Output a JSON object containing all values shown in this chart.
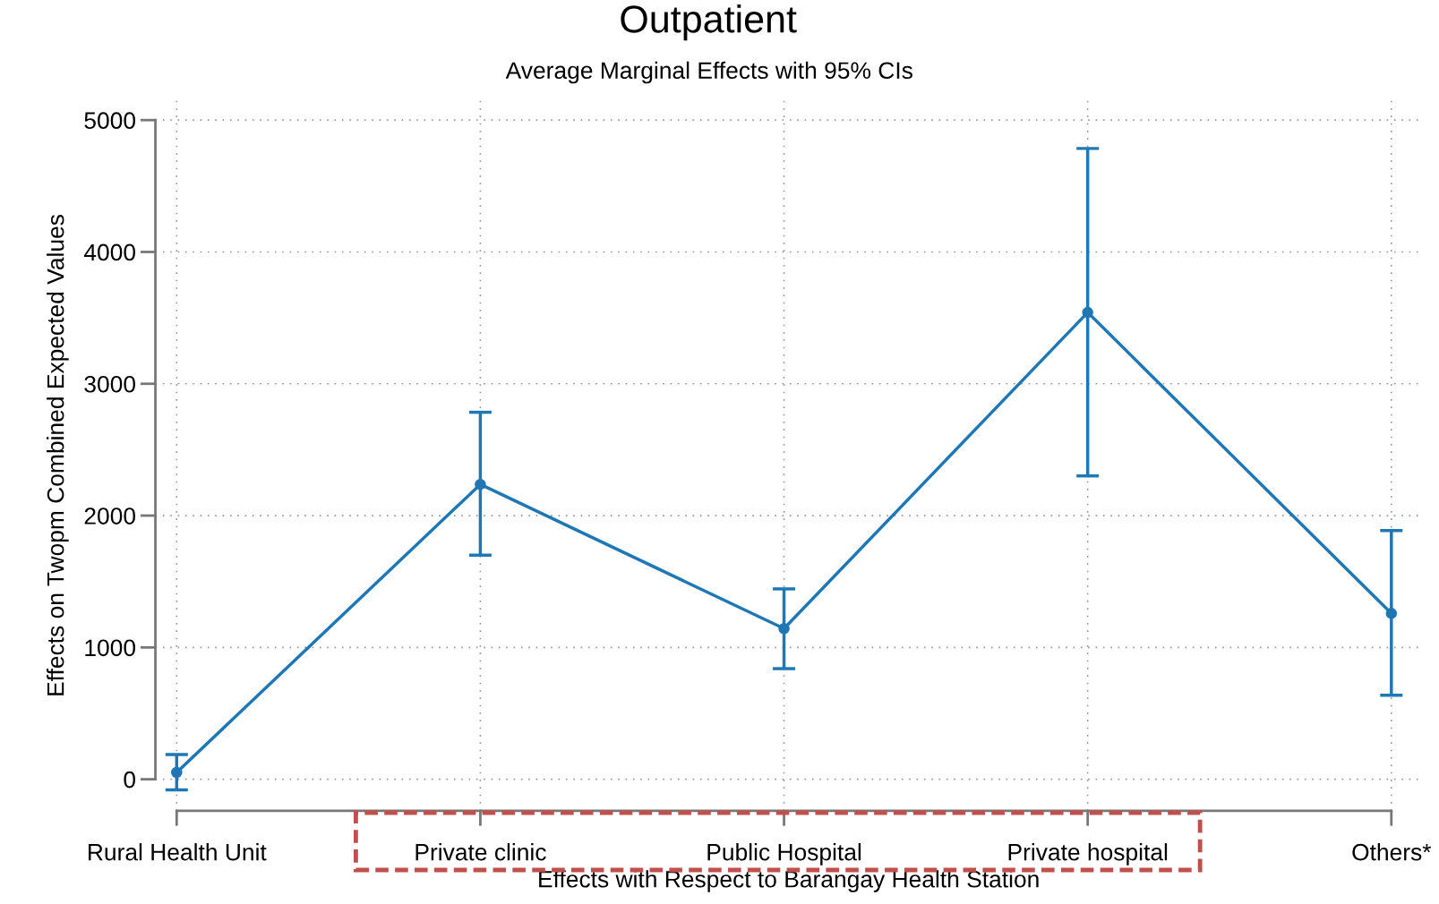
{
  "chart_data": {
    "type": "line",
    "title": "Outpatient",
    "subtitle": "Average Marginal Effects with 95% CIs",
    "xlabel": "Effects with Respect to Barangay Health Station",
    "ylabel": "Effects on Twopm Combined Expected Values",
    "categories": [
      "Rural Health Unit",
      "Private clinic",
      "Public Hospital",
      "Private hospital",
      "Others*"
    ],
    "series": [
      {
        "color": "#1f77b4",
        "values": [
          52,
          2237,
          1143,
          3541,
          1258
        ],
        "errors": [
          [
            -80,
            187
          ],
          [
            1700,
            2784
          ],
          [
            839,
            1444
          ],
          [
            2301,
            4785
          ],
          [
            638,
            1886
          ]
        ]
      }
    ],
    "ylim": [
      -240,
      5150
    ],
    "yticks": [
      0,
      1000,
      2000,
      3000,
      4000,
      5000
    ],
    "grid": true,
    "marker": "circle",
    "line_style": "solid"
  }
}
